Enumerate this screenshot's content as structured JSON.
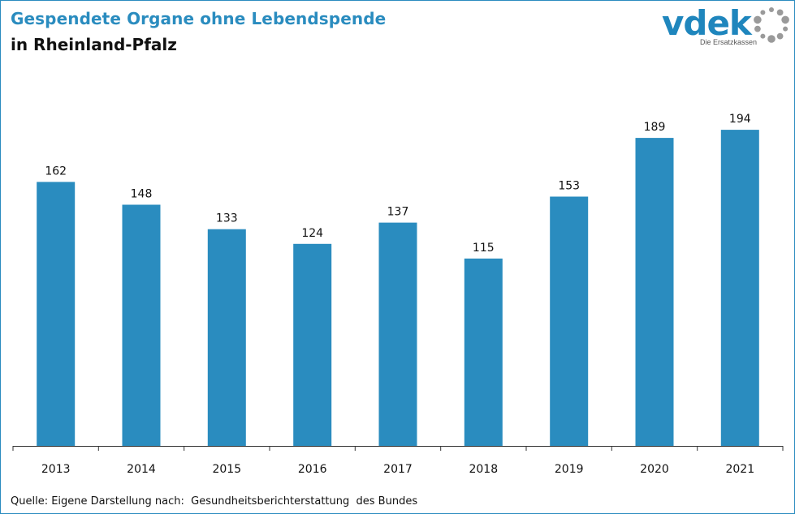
{
  "header": {
    "title": "Gespendete Organe ohne Lebendspende",
    "subtitle": "in Rheinland-Pfalz"
  },
  "logo": {
    "word": "vdek",
    "tagline": "Die Ersatzkassen",
    "icon": "vdek-ring-logo-icon"
  },
  "footer": {
    "source": "Quelle: Eigene Darstellung nach:  Gesundheitsberichterstattung  des Bundes"
  },
  "colors": {
    "accent": "#2a8cbf",
    "bar": "#2a8cbf",
    "text": "#111111"
  },
  "chart_data": {
    "type": "bar",
    "categories": [
      "2013",
      "2014",
      "2015",
      "2016",
      "2017",
      "2018",
      "2019",
      "2020",
      "2021"
    ],
    "values": [
      162,
      148,
      133,
      124,
      137,
      115,
      153,
      189,
      194
    ],
    "data_labels": [
      "162",
      "148",
      "133",
      "124",
      "137",
      "115",
      "153",
      "189",
      "194"
    ],
    "title": "Gespendete Organe ohne Lebendspende",
    "subtitle": "in Rheinland-Pfalz",
    "xlabel": "",
    "ylabel": "",
    "ylim": [
      0,
      200
    ],
    "grid": false,
    "legend": "none"
  }
}
